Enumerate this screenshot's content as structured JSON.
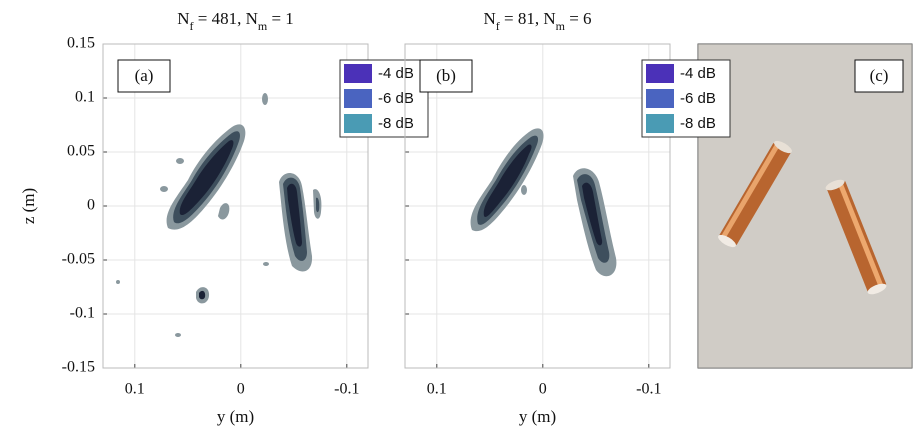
{
  "chart_data": [
    {
      "type": "contour",
      "title": [
        {
          "text": "N"
        },
        {
          "sub": "f"
        },
        {
          "text": " = 481, N"
        },
        {
          "sub": "m"
        },
        {
          "text": " = 1"
        }
      ],
      "panel_label": "(a)",
      "xlabel": "y (m)",
      "ylabel": "z (m)",
      "xlim": [
        0.13,
        -0.12
      ],
      "ylim": [
        -0.15,
        0.15
      ],
      "xticks": [
        0.1,
        0,
        -0.1
      ],
      "yticks": [
        -0.15,
        -0.1,
        -0.05,
        0,
        0.05,
        0.1,
        0.15
      ],
      "show_ytick_labels": true,
      "grid": true,
      "legend": [
        {
          "name": "-4 dB",
          "color": "#4b31b8"
        },
        {
          "name": "-6 dB",
          "color": "#4a64c0"
        },
        {
          "name": "-8 dB",
          "color": "#4a9bb4"
        }
      ]
    },
    {
      "type": "contour",
      "title": [
        {
          "text": "N"
        },
        {
          "sub": "f"
        },
        {
          "text": " = 81, N"
        },
        {
          "sub": "m"
        },
        {
          "text": " = 6"
        }
      ],
      "panel_label": "(b)",
      "xlabel": "y (m)",
      "xlim": [
        0.13,
        -0.12
      ],
      "ylim": [
        -0.15,
        0.15
      ],
      "xticks": [
        0.1,
        0,
        -0.1
      ],
      "yticks": [
        -0.15,
        -0.1,
        -0.05,
        0,
        0.05,
        0.1,
        0.15
      ],
      "show_ytick_labels": false,
      "grid": true,
      "legend": [
        {
          "name": "-4 dB",
          "color": "#4b31b8"
        },
        {
          "name": "-6 dB",
          "color": "#4a64c0"
        },
        {
          "name": "-8 dB",
          "color": "#4a9bb4"
        }
      ]
    }
  ],
  "photo": {
    "panel_label": "(c)"
  }
}
